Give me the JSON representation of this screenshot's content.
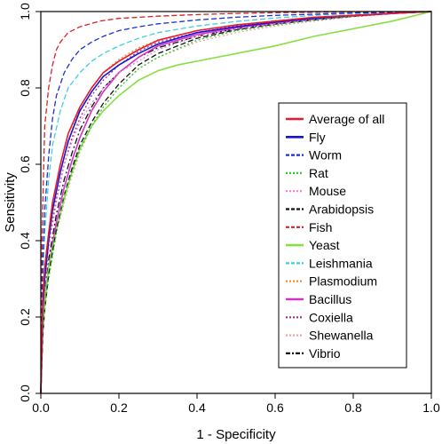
{
  "chart_data": {
    "type": "line",
    "title": "",
    "xlabel": "1 - Specificity",
    "ylabel": "Sensitivity",
    "xlim": [
      0,
      1
    ],
    "ylim": [
      0,
      1
    ],
    "x_tick_labels": [
      "0.0",
      "0.2",
      "0.4",
      "0.6",
      "0.8",
      "1.0"
    ],
    "y_tick_labels": [
      "0.0",
      "0.2",
      "0.4",
      "0.6",
      "0.8",
      "1.0"
    ],
    "grid": false,
    "legend_position": "right",
    "series": [
      {
        "name": "Average of all",
        "color": "#e8192c",
        "style": "solid",
        "x": [
          0,
          0.005,
          0.01,
          0.02,
          0.03,
          0.05,
          0.07,
          0.1,
          0.13,
          0.16,
          0.2,
          0.25,
          0.3,
          0.4,
          0.5,
          0.6,
          0.7,
          0.8,
          0.9,
          1.0
        ],
        "y": [
          0,
          0.25,
          0.33,
          0.42,
          0.5,
          0.6,
          0.68,
          0.75,
          0.8,
          0.84,
          0.87,
          0.9,
          0.925,
          0.95,
          0.965,
          0.975,
          0.985,
          0.99,
          0.995,
          1.0
        ]
      },
      {
        "name": "Fly",
        "color": "#1515d0",
        "style": "solid",
        "x": [
          0,
          0.005,
          0.01,
          0.02,
          0.03,
          0.05,
          0.07,
          0.1,
          0.13,
          0.16,
          0.2,
          0.25,
          0.3,
          0.4,
          0.5,
          0.6,
          0.7,
          0.8,
          0.9,
          1.0
        ],
        "y": [
          0,
          0.22,
          0.3,
          0.4,
          0.48,
          0.58,
          0.66,
          0.74,
          0.79,
          0.83,
          0.86,
          0.89,
          0.915,
          0.945,
          0.96,
          0.972,
          0.982,
          0.99,
          0.995,
          1.0
        ]
      },
      {
        "name": "Worm",
        "color": "#1c2fd8",
        "style": "dashed",
        "x": [
          0,
          0.005,
          0.01,
          0.02,
          0.03,
          0.04,
          0.06,
          0.08,
          0.1,
          0.13,
          0.16,
          0.2,
          0.25,
          0.3,
          0.4,
          0.5,
          0.6,
          0.8,
          1.0
        ],
        "y": [
          0,
          0.35,
          0.48,
          0.62,
          0.72,
          0.78,
          0.84,
          0.875,
          0.9,
          0.92,
          0.935,
          0.95,
          0.96,
          0.968,
          0.978,
          0.985,
          0.99,
          0.996,
          1.0
        ]
      },
      {
        "name": "Rat",
        "color": "#2ecc2e",
        "style": "dotted",
        "x": [
          0,
          0.005,
          0.01,
          0.02,
          0.04,
          0.06,
          0.08,
          0.1,
          0.13,
          0.16,
          0.2,
          0.25,
          0.3,
          0.4,
          0.5,
          0.6,
          0.7,
          0.8,
          0.9,
          1.0
        ],
        "y": [
          0,
          0.15,
          0.22,
          0.3,
          0.42,
          0.52,
          0.58,
          0.64,
          0.7,
          0.75,
          0.8,
          0.85,
          0.88,
          0.925,
          0.95,
          0.965,
          0.978,
          0.988,
          0.995,
          1.0
        ]
      },
      {
        "name": "Mouse",
        "color": "#e880d8",
        "style": "dotted",
        "x": [
          0,
          0.005,
          0.01,
          0.02,
          0.04,
          0.06,
          0.08,
          0.1,
          0.13,
          0.16,
          0.2,
          0.25,
          0.3,
          0.4,
          0.5,
          0.6,
          0.7,
          0.8,
          0.9,
          1.0
        ],
        "y": [
          0,
          0.2,
          0.28,
          0.38,
          0.5,
          0.6,
          0.66,
          0.71,
          0.76,
          0.8,
          0.84,
          0.87,
          0.9,
          0.935,
          0.955,
          0.968,
          0.98,
          0.989,
          0.995,
          1.0
        ]
      },
      {
        "name": "Arabidopsis",
        "color": "#111111",
        "style": "dashed",
        "x": [
          0,
          0.005,
          0.01,
          0.02,
          0.04,
          0.06,
          0.08,
          0.1,
          0.13,
          0.16,
          0.2,
          0.25,
          0.3,
          0.4,
          0.5,
          0.6,
          0.7,
          0.8,
          0.9,
          1.0
        ],
        "y": [
          0,
          0.15,
          0.22,
          0.31,
          0.43,
          0.52,
          0.59,
          0.65,
          0.71,
          0.76,
          0.81,
          0.86,
          0.89,
          0.93,
          0.952,
          0.967,
          0.978,
          0.988,
          0.995,
          1.0
        ]
      },
      {
        "name": "Fish",
        "color": "#d8202a",
        "style": "dashed",
        "x": [
          0,
          0.003,
          0.007,
          0.01,
          0.02,
          0.03,
          0.04,
          0.05,
          0.07,
          0.1,
          0.15,
          0.2,
          0.3,
          0.4,
          0.5,
          0.6,
          0.8,
          1.0
        ],
        "y": [
          0,
          0.4,
          0.58,
          0.7,
          0.8,
          0.86,
          0.9,
          0.92,
          0.945,
          0.96,
          0.975,
          0.982,
          0.988,
          0.992,
          0.995,
          0.997,
          0.999,
          1.0
        ]
      },
      {
        "name": "Yeast",
        "color": "#86e040",
        "style": "solid",
        "x": [
          0,
          0.005,
          0.01,
          0.02,
          0.04,
          0.06,
          0.08,
          0.1,
          0.13,
          0.16,
          0.2,
          0.25,
          0.3,
          0.35,
          0.4,
          0.5,
          0.6,
          0.7,
          0.8,
          0.9,
          1.0
        ],
        "y": [
          0,
          0.18,
          0.25,
          0.33,
          0.43,
          0.51,
          0.58,
          0.64,
          0.7,
          0.74,
          0.78,
          0.82,
          0.845,
          0.86,
          0.87,
          0.89,
          0.91,
          0.935,
          0.955,
          0.975,
          1.0
        ]
      },
      {
        "name": "Leishmania",
        "color": "#3ecde0",
        "style": "dashed",
        "x": [
          0,
          0.005,
          0.01,
          0.02,
          0.03,
          0.05,
          0.07,
          0.1,
          0.13,
          0.16,
          0.2,
          0.25,
          0.3,
          0.4,
          0.5,
          0.6,
          0.7,
          0.8,
          1.0
        ],
        "y": [
          0,
          0.3,
          0.42,
          0.56,
          0.65,
          0.74,
          0.8,
          0.84,
          0.87,
          0.89,
          0.91,
          0.93,
          0.945,
          0.962,
          0.974,
          0.983,
          0.99,
          0.995,
          1.0
        ]
      },
      {
        "name": "Plasmodium",
        "color": "#f08a28",
        "style": "dotted",
        "x": [
          0,
          0.005,
          0.01,
          0.02,
          0.04,
          0.06,
          0.08,
          0.1,
          0.13,
          0.16,
          0.2,
          0.25,
          0.3,
          0.4,
          0.5,
          0.6,
          0.7,
          0.8,
          0.9,
          1.0
        ],
        "y": [
          0,
          0.2,
          0.3,
          0.4,
          0.53,
          0.62,
          0.69,
          0.75,
          0.8,
          0.84,
          0.875,
          0.905,
          0.925,
          0.95,
          0.965,
          0.976,
          0.985,
          0.991,
          0.996,
          1.0
        ]
      },
      {
        "name": "Bacillus",
        "color": "#d830c8",
        "style": "solid",
        "x": [
          0,
          0.005,
          0.01,
          0.02,
          0.04,
          0.06,
          0.08,
          0.1,
          0.13,
          0.16,
          0.2,
          0.25,
          0.3,
          0.4,
          0.5,
          0.6,
          0.7,
          0.8,
          0.9,
          1.0
        ],
        "y": [
          0,
          0.17,
          0.24,
          0.33,
          0.45,
          0.54,
          0.61,
          0.67,
          0.74,
          0.79,
          0.84,
          0.88,
          0.91,
          0.94,
          0.958,
          0.97,
          0.98,
          0.988,
          0.995,
          1.0
        ]
      },
      {
        "name": "Coxiella",
        "color": "#9b2c8c",
        "style": "dotted",
        "x": [
          0,
          0.005,
          0.01,
          0.02,
          0.04,
          0.06,
          0.08,
          0.1,
          0.13,
          0.16,
          0.2,
          0.25,
          0.3,
          0.4,
          0.5,
          0.6,
          0.7,
          0.8,
          0.9,
          1.0
        ],
        "y": [
          0,
          0.2,
          0.29,
          0.39,
          0.51,
          0.6,
          0.67,
          0.72,
          0.78,
          0.82,
          0.86,
          0.895,
          0.92,
          0.945,
          0.962,
          0.974,
          0.984,
          0.99,
          0.995,
          1.0
        ]
      },
      {
        "name": "Shewanella",
        "color": "#eca4a4",
        "style": "dotted",
        "x": [
          0,
          0.005,
          0.01,
          0.02,
          0.04,
          0.06,
          0.08,
          0.1,
          0.13,
          0.16,
          0.2,
          0.25,
          0.3,
          0.4,
          0.5,
          0.6,
          0.7,
          0.8,
          0.9,
          1.0
        ],
        "y": [
          0,
          0.16,
          0.23,
          0.31,
          0.42,
          0.5,
          0.57,
          0.63,
          0.7,
          0.75,
          0.8,
          0.85,
          0.88,
          0.92,
          0.945,
          0.962,
          0.975,
          0.986,
          0.994,
          1.0
        ]
      },
      {
        "name": "Vibrio",
        "color": "#111111",
        "style": "dashdot",
        "x": [
          0,
          0.005,
          0.01,
          0.02,
          0.04,
          0.06,
          0.08,
          0.1,
          0.13,
          0.16,
          0.2,
          0.25,
          0.3,
          0.4,
          0.5,
          0.6,
          0.7,
          0.8,
          0.9,
          1.0
        ],
        "y": [
          0,
          0.18,
          0.26,
          0.35,
          0.47,
          0.56,
          0.63,
          0.69,
          0.75,
          0.8,
          0.84,
          0.88,
          0.905,
          0.935,
          0.955,
          0.968,
          0.98,
          0.988,
          0.995,
          1.0
        ]
      }
    ]
  }
}
